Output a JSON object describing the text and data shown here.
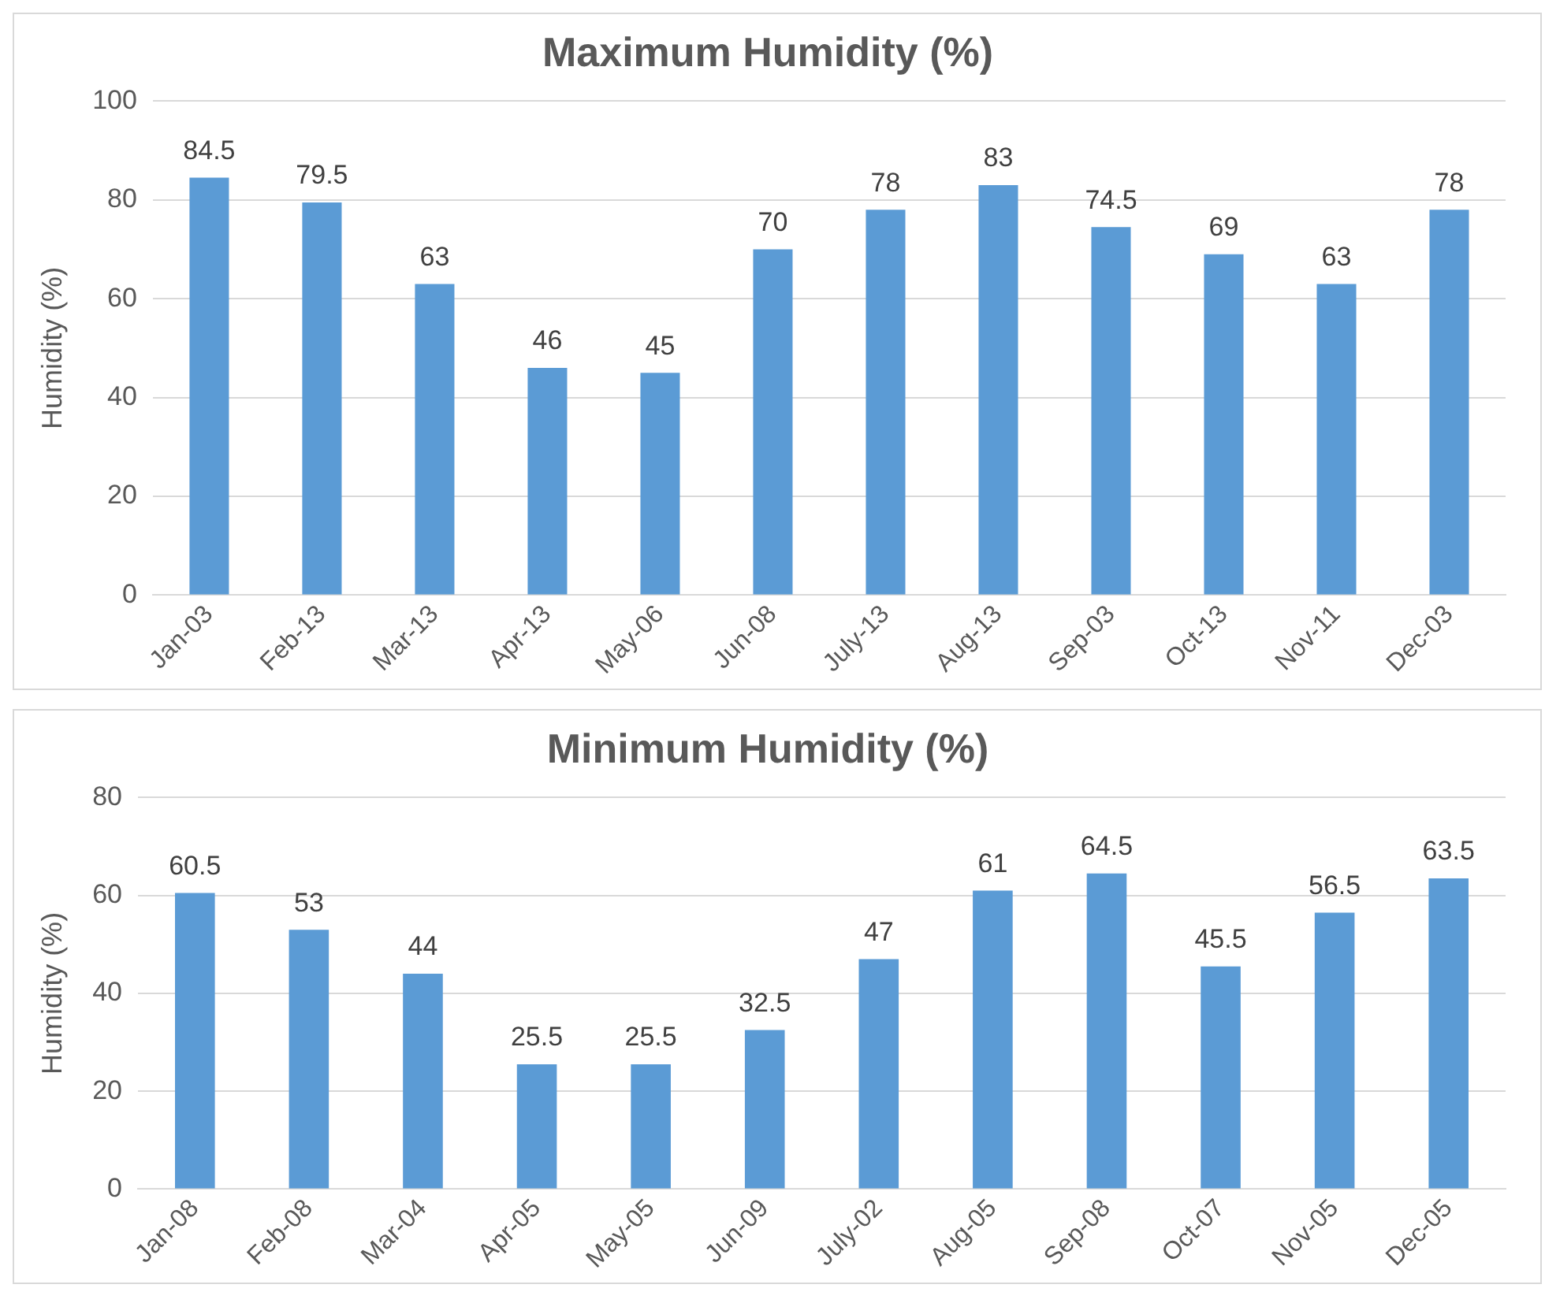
{
  "chart_data": [
    {
      "type": "bar",
      "title": "Maximum Humidity (%)",
      "ylabel": "Humidity (%)",
      "categories": [
        "Jan-03",
        "Feb-13",
        "Mar-13",
        "Apr-13",
        "May-06",
        "Jun-08",
        "July-13",
        "Aug-13",
        "Sep-03",
        "Oct-13",
        "Nov-11",
        "Dec-03"
      ],
      "values": [
        84.5,
        79.5,
        63,
        46,
        45,
        70,
        78,
        83,
        74.5,
        69,
        63,
        78
      ],
      "color": "#5b9bd5",
      "ylim": [
        0,
        100
      ],
      "yticks": [
        0,
        20,
        40,
        60,
        80,
        100
      ],
      "grid": "y",
      "data_labels": true
    },
    {
      "type": "bar",
      "title": "Minimum Humidity (%)",
      "ylabel": "Humidity (%)",
      "categories": [
        "Jan-08",
        "Feb-08",
        "Mar-04",
        "Apr-05",
        "May-05",
        "Jun-09",
        "July-02",
        "Aug-05",
        "Sep-08",
        "Oct-07",
        "Nov-05",
        "Dec-05"
      ],
      "values": [
        60.5,
        53,
        44,
        25.5,
        25.5,
        32.5,
        47,
        61,
        64.5,
        45.5,
        56.5,
        63.5
      ],
      "color": "#5b9bd5",
      "ylim": [
        0,
        80
      ],
      "yticks": [
        0,
        20,
        40,
        60,
        80
      ],
      "grid": "y",
      "data_labels": true
    }
  ]
}
